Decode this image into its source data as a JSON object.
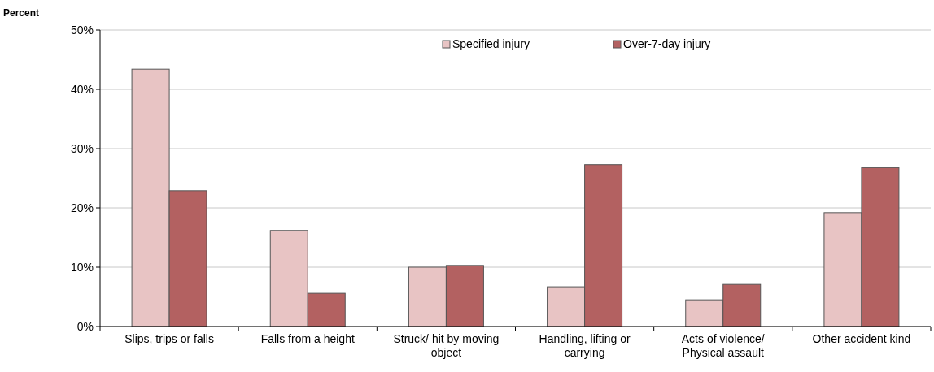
{
  "chart_data": {
    "type": "bar",
    "ylabel": "Percent",
    "categories": [
      "Slips, trips or falls",
      "Falls from a height",
      "Struck/ hit by moving object",
      "Handling, lifting or carrying",
      "Acts of violence/ Physical assault",
      "Other accident kind"
    ],
    "series": [
      {
        "name": "Specified injury",
        "color": "#e8c4c4",
        "values": [
          43.4,
          16.2,
          10.0,
          6.7,
          4.5,
          19.2
        ]
      },
      {
        "name": "Over-7-day injury",
        "color": "#b36161",
        "values": [
          22.9,
          5.6,
          10.3,
          27.3,
          7.1,
          26.8
        ]
      }
    ],
    "ylim": [
      0,
      50
    ],
    "yticks": [
      {
        "value": 0,
        "label": "0%"
      },
      {
        "value": 10,
        "label": "10%"
      },
      {
        "value": 20,
        "label": "20%"
      },
      {
        "value": 30,
        "label": "30%"
      },
      {
        "value": 40,
        "label": "40%"
      },
      {
        "value": 50,
        "label": "50%"
      }
    ],
    "grid": "y",
    "legend": "top right"
  }
}
